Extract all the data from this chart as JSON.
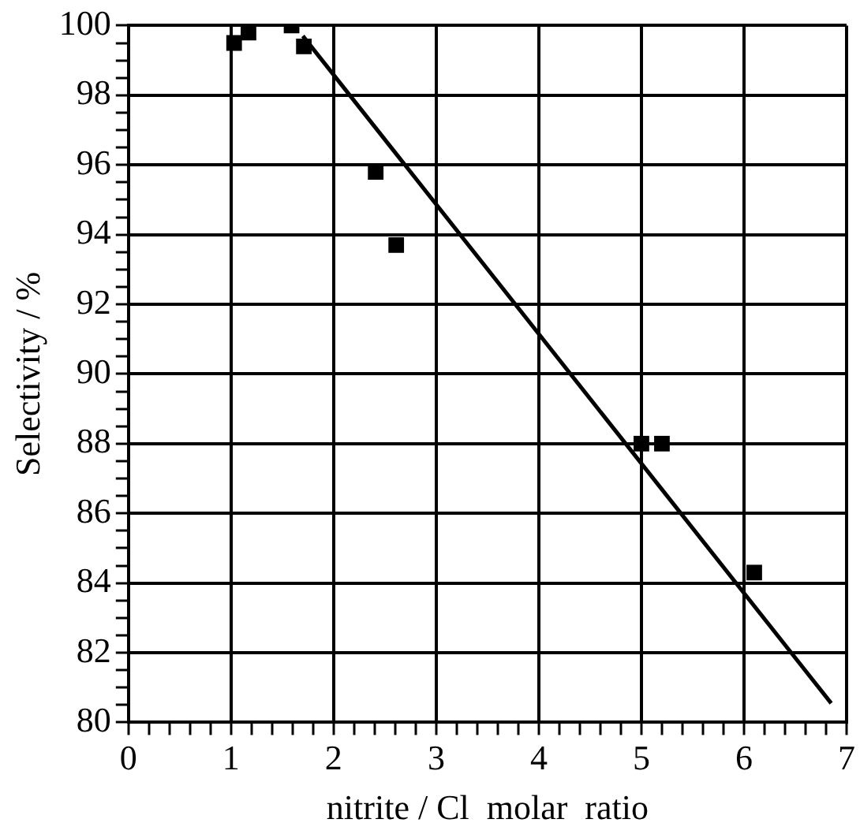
{
  "chart_data": {
    "type": "scatter",
    "xlabel": "nitrite / Cl  molar  ratio",
    "ylabel": "Selectivity / %",
    "marker": "square",
    "grid": true,
    "legend": false,
    "xlim": [
      0,
      7
    ],
    "ylim": [
      80,
      100
    ],
    "xticks": [
      0,
      {
        "value": 0.2,
        "label": null
      },
      {
        "value": 0.4,
        "label": null
      },
      {
        "value": 0.6,
        "label": null
      },
      {
        "value": 0.8,
        "label": null
      },
      1,
      {
        "value": 1.2,
        "label": null
      },
      {
        "value": 1.4,
        "label": null
      },
      {
        "value": 1.6,
        "label": null
      },
      {
        "value": 1.8,
        "label": null
      },
      2,
      {
        "value": 2.2,
        "label": null
      },
      {
        "value": 2.4,
        "label": null
      },
      {
        "value": 2.6,
        "label": null
      },
      {
        "value": 2.8,
        "label": null
      },
      3,
      {
        "value": 3.2,
        "label": null
      },
      {
        "value": 3.4,
        "label": null
      },
      {
        "value": 3.6,
        "label": null
      },
      {
        "value": 3.8,
        "label": null
      },
      4,
      {
        "value": 4.2,
        "label": null
      },
      {
        "value": 4.4,
        "label": null
      },
      {
        "value": 4.6,
        "label": null
      },
      {
        "value": 4.8,
        "label": null
      },
      5,
      {
        "value": 5.2,
        "label": null
      },
      {
        "value": 5.4,
        "label": null
      },
      {
        "value": 5.6,
        "label": null
      },
      {
        "value": 5.8,
        "label": null
      },
      6,
      {
        "value": 6.2,
        "label": null
      },
      {
        "value": 6.4,
        "label": null
      },
      {
        "value": 6.6,
        "label": null
      },
      {
        "value": 6.8,
        "label": null
      },
      7
    ],
    "yticks": [
      80,
      {
        "value": 80.5,
        "label": null
      },
      {
        "value": 81,
        "label": null
      },
      {
        "value": 81.5,
        "label": null
      },
      82,
      {
        "value": 82.5,
        "label": null
      },
      {
        "value": 83,
        "label": null
      },
      {
        "value": 83.5,
        "label": null
      },
      84,
      {
        "value": 84.5,
        "label": null
      },
      {
        "value": 85,
        "label": null
      },
      {
        "value": 85.5,
        "label": null
      },
      86,
      {
        "value": 86.5,
        "label": null
      },
      {
        "value": 87,
        "label": null
      },
      {
        "value": 87.5,
        "label": null
      },
      88,
      {
        "value": 88.5,
        "label": null
      },
      {
        "value": 89,
        "label": null
      },
      {
        "value": 89.5,
        "label": null
      },
      90,
      {
        "value": 90.5,
        "label": null
      },
      {
        "value": 91,
        "label": null
      },
      {
        "value": 91.5,
        "label": null
      },
      92,
      {
        "value": 92.5,
        "label": null
      },
      {
        "value": 93,
        "label": null
      },
      {
        "value": 93.5,
        "label": null
      },
      94,
      {
        "value": 94.5,
        "label": null
      },
      {
        "value": 95,
        "label": null
      },
      {
        "value": 95.5,
        "label": null
      },
      96,
      {
        "value": 96.5,
        "label": null
      },
      {
        "value": 97,
        "label": null
      },
      {
        "value": 97.5,
        "label": null
      },
      98,
      {
        "value": 98.5,
        "label": null
      },
      {
        "value": 99,
        "label": null
      },
      {
        "value": 99.5,
        "label": null
      },
      100
    ],
    "series": [
      {
        "type": "scatter",
        "color": "#000000",
        "x": [
          1.03,
          1.17,
          1.59,
          1.71,
          2.41,
          2.61,
          5.0,
          5.2,
          6.1
        ],
        "values": [
          99.5,
          99.8,
          100,
          99.4,
          95.8,
          93.7,
          88,
          88,
          84.3
        ]
      },
      {
        "type": "line",
        "color": "#000000",
        "marker": "none",
        "x": [
          1.7,
          6.85
        ],
        "values": [
          99.7,
          80.55
        ]
      }
    ]
  }
}
